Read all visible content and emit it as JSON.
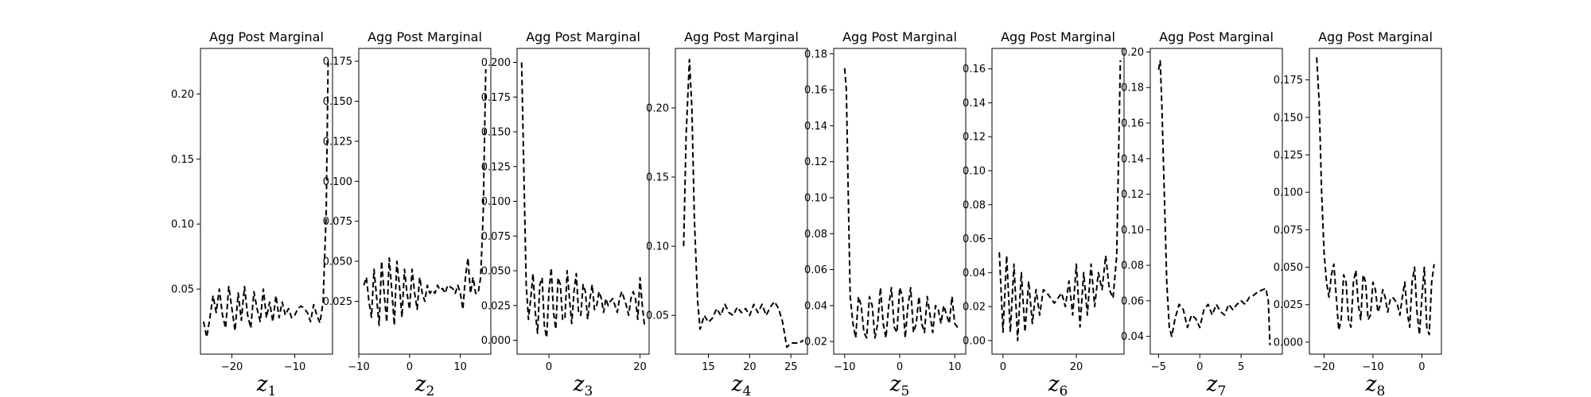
{
  "chart_data": [
    {
      "type": "line",
      "title": "Agg Post Marginal",
      "xlabel": "z",
      "xlabel_sub": "1",
      "xlim": [
        -25,
        -4
      ],
      "ylim": [
        0,
        0.235
      ],
      "xticks": [
        -20,
        -10
      ],
      "yticks": [
        0.05,
        0.1,
        0.15,
        0.2
      ],
      "series": [
        {
          "x": [
            -24.5,
            -24.0,
            -23.5,
            -23.0,
            -22.5,
            -22.0,
            -21.5,
            -21.0,
            -20.5,
            -20.0,
            -19.5,
            -19.0,
            -18.5,
            -18.0,
            -17.5,
            -17.0,
            -16.5,
            -16.0,
            -15.5,
            -15.0,
            -14.5,
            -14.0,
            -13.5,
            -13.0,
            -12.5,
            -12.0,
            -11.5,
            -11.0,
            -10.5,
            -10.0,
            -9.5,
            -9.0,
            -8.5,
            -8.0,
            -7.5,
            -7.0,
            -6.5,
            -6.0,
            -5.5,
            -5.0,
            -4.7
          ],
          "y": [
            0.025,
            0.013,
            0.028,
            0.045,
            0.032,
            0.05,
            0.03,
            0.02,
            0.052,
            0.035,
            0.018,
            0.047,
            0.026,
            0.052,
            0.03,
            0.02,
            0.048,
            0.035,
            0.025,
            0.05,
            0.028,
            0.04,
            0.025,
            0.045,
            0.028,
            0.04,
            0.03,
            0.035,
            0.028,
            0.03,
            0.035,
            0.037,
            0.035,
            0.032,
            0.025,
            0.038,
            0.03,
            0.024,
            0.04,
            0.11,
            0.225
          ]
        }
      ]
    },
    {
      "type": "line",
      "title": "Agg Post Marginal",
      "xlabel": "z",
      "xlabel_sub": "2",
      "xlim": [
        -10,
        16
      ],
      "ylim": [
        -0.008,
        0.183
      ],
      "xticks": [
        -10,
        0,
        10
      ],
      "yticks": [
        0.025,
        0.05,
        0.075,
        0.1,
        0.125,
        0.15,
        0.175
      ],
      "series": [
        {
          "x": [
            -9.0,
            -8.5,
            -8.0,
            -7.5,
            -7.0,
            -6.5,
            -6.0,
            -5.5,
            -5.0,
            -4.5,
            -4.0,
            -3.5,
            -3.0,
            -2.5,
            -2.0,
            -1.5,
            -1.0,
            -0.5,
            0.0,
            0.5,
            1.0,
            1.5,
            2.0,
            2.5,
            3.0,
            3.5,
            4.0,
            4.5,
            5.0,
            5.5,
            6.0,
            6.5,
            7.0,
            7.5,
            8.0,
            8.5,
            9.0,
            9.5,
            10.0,
            10.5,
            11.0,
            11.5,
            12.0,
            12.5,
            13.0,
            13.5,
            14.0,
            14.5,
            15.0
          ],
          "y": [
            0.035,
            0.04,
            0.025,
            0.015,
            0.045,
            0.028,
            0.01,
            0.05,
            0.03,
            0.012,
            0.052,
            0.032,
            0.01,
            0.05,
            0.035,
            0.015,
            0.045,
            0.03,
            0.02,
            0.045,
            0.03,
            0.02,
            0.04,
            0.03,
            0.025,
            0.035,
            0.03,
            0.032,
            0.03,
            0.035,
            0.032,
            0.033,
            0.03,
            0.035,
            0.034,
            0.033,
            0.03,
            0.035,
            0.03,
            0.02,
            0.04,
            0.052,
            0.03,
            0.04,
            0.03,
            0.03,
            0.04,
            0.08,
            0.17
          ]
        }
      ]
    },
    {
      "type": "line",
      "title": "Agg Post Marginal",
      "xlabel": "z",
      "xlabel_sub": "3",
      "xlim": [
        -7,
        22
      ],
      "ylim": [
        -0.01,
        0.21
      ],
      "xticks": [
        0,
        20
      ],
      "yticks": [
        0.0,
        0.025,
        0.05,
        0.075,
        0.1,
        0.125,
        0.15,
        0.175,
        0.2
      ],
      "series": [
        {
          "x": [
            -6,
            -5.5,
            -5,
            -4.5,
            -4,
            -3.5,
            -3,
            -2.5,
            -2,
            -1.5,
            -1,
            -0.5,
            0,
            0.5,
            1,
            1.5,
            2,
            2.5,
            3,
            3.5,
            4,
            4.5,
            5,
            5.5,
            6,
            6.5,
            7,
            7.5,
            8,
            8.5,
            9,
            9.5,
            10,
            10.5,
            11,
            11.5,
            12,
            12.5,
            13,
            13.5,
            14,
            14.5,
            15,
            15.5,
            16,
            16.5,
            17,
            17.5,
            18,
            18.5,
            19,
            19.5,
            20,
            20.5,
            21
          ],
          "y": [
            0.2,
            0.12,
            0.04,
            0.015,
            0.03,
            0.048,
            0.02,
            0.005,
            0.04,
            0.045,
            0.01,
            0.002,
            0.035,
            0.052,
            0.02,
            0.008,
            0.045,
            0.04,
            0.015,
            0.015,
            0.05,
            0.03,
            0.012,
            0.035,
            0.048,
            0.02,
            0.018,
            0.04,
            0.035,
            0.015,
            0.03,
            0.04,
            0.022,
            0.025,
            0.035,
            0.03,
            0.02,
            0.03,
            0.025,
            0.028,
            0.03,
            0.025,
            0.02,
            0.03,
            0.035,
            0.03,
            0.025,
            0.018,
            0.03,
            0.035,
            0.03,
            0.015,
            0.045,
            0.025,
            0.01
          ]
        }
      ]
    },
    {
      "type": "line",
      "title": "Agg Post Marginal",
      "xlabel": "z",
      "xlabel_sub": "4",
      "xlim": [
        11,
        27
      ],
      "ylim": [
        0.022,
        0.243
      ],
      "xticks": [
        15,
        20,
        25
      ],
      "yticks": [
        0.05,
        0.1,
        0.15,
        0.2
      ],
      "series": [
        {
          "x": [
            12.0,
            12.3,
            12.7,
            13.0,
            13.3,
            13.7,
            14.0,
            14.5,
            15.0,
            15.5,
            16.0,
            16.5,
            17.0,
            17.5,
            18.0,
            18.5,
            19.0,
            19.5,
            20.0,
            20.5,
            21.0,
            21.5,
            22.0,
            22.5,
            23.0,
            23.5,
            24.0,
            24.5,
            25.0,
            25.5,
            26.0,
            26.5
          ],
          "y": [
            0.1,
            0.18,
            0.235,
            0.2,
            0.12,
            0.06,
            0.04,
            0.05,
            0.045,
            0.048,
            0.055,
            0.05,
            0.058,
            0.052,
            0.05,
            0.056,
            0.052,
            0.055,
            0.05,
            0.058,
            0.052,
            0.058,
            0.05,
            0.056,
            0.06,
            0.055,
            0.045,
            0.027,
            0.03,
            0.03,
            0.03,
            0.032
          ]
        }
      ]
    },
    {
      "type": "line",
      "title": "Agg Post Marginal",
      "xlabel": "z",
      "xlabel_sub": "5",
      "xlim": [
        -12,
        12
      ],
      "ylim": [
        0.013,
        0.183
      ],
      "xticks": [
        -10,
        0,
        10
      ],
      "yticks": [
        0.02,
        0.04,
        0.06,
        0.08,
        0.1,
        0.12,
        0.14,
        0.16,
        0.18
      ],
      "series": [
        {
          "x": [
            -10.0,
            -9.7,
            -9.4,
            -9.0,
            -8.5,
            -8.0,
            -7.5,
            -7.0,
            -6.5,
            -6.0,
            -5.5,
            -5.0,
            -4.5,
            -4.0,
            -3.5,
            -3.0,
            -2.5,
            -2.0,
            -1.5,
            -1.0,
            -0.5,
            0.0,
            0.5,
            1.0,
            1.5,
            2.0,
            2.5,
            3.0,
            3.5,
            4.0,
            4.5,
            5.0,
            5.5,
            6.0,
            6.5,
            7.0,
            7.5,
            8.0,
            8.5,
            9.0,
            9.5,
            10.0,
            10.5,
            11.0
          ],
          "y": [
            0.172,
            0.16,
            0.11,
            0.045,
            0.03,
            0.022,
            0.045,
            0.04,
            0.025,
            0.022,
            0.045,
            0.04,
            0.022,
            0.03,
            0.05,
            0.03,
            0.022,
            0.04,
            0.05,
            0.028,
            0.025,
            0.05,
            0.045,
            0.022,
            0.04,
            0.05,
            0.025,
            0.03,
            0.045,
            0.03,
            0.025,
            0.045,
            0.035,
            0.025,
            0.04,
            0.038,
            0.03,
            0.04,
            0.035,
            0.03,
            0.045,
            0.03,
            0.028,
            0.028
          ]
        }
      ]
    },
    {
      "type": "line",
      "title": "Agg Post Marginal",
      "xlabel": "z",
      "xlabel_sub": "6",
      "xlim": [
        -3,
        33
      ],
      "ylim": [
        -0.008,
        0.172
      ],
      "xticks": [
        0,
        20
      ],
      "yticks": [
        0.0,
        0.02,
        0.04,
        0.06,
        0.08,
        0.1,
        0.12,
        0.14,
        0.16
      ],
      "series": [
        {
          "x": [
            -1.0,
            0.0,
            1.0,
            2.0,
            3.0,
            4.0,
            5.0,
            6.0,
            7.0,
            8.0,
            9.0,
            10.0,
            11.0,
            12.0,
            13.0,
            14.0,
            15.0,
            16.0,
            17.0,
            18.0,
            19.0,
            20.0,
            21.0,
            22.0,
            23.0,
            24.0,
            25.0,
            26.0,
            27.0,
            28.0,
            29.0,
            30.0,
            31.0,
            32.0
          ],
          "y": [
            0.052,
            0.005,
            0.05,
            0.005,
            0.045,
            0.0,
            0.04,
            0.005,
            0.035,
            0.01,
            0.03,
            0.015,
            0.03,
            0.028,
            0.025,
            0.022,
            0.025,
            0.028,
            0.02,
            0.035,
            0.015,
            0.045,
            0.008,
            0.04,
            0.015,
            0.045,
            0.02,
            0.04,
            0.03,
            0.05,
            0.03,
            0.025,
            0.05,
            0.165
          ]
        }
      ]
    },
    {
      "type": "line",
      "title": "Agg Post Marginal",
      "xlabel": "z",
      "xlabel_sub": "7",
      "xlim": [
        -6,
        10
      ],
      "ylim": [
        0.03,
        0.202
      ],
      "xticks": [
        -5,
        0,
        5
      ],
      "yticks": [
        0.04,
        0.06,
        0.08,
        0.1,
        0.12,
        0.14,
        0.16,
        0.18,
        0.2
      ],
      "series": [
        {
          "x": [
            -5.0,
            -4.8,
            -4.6,
            -4.3,
            -4.0,
            -3.7,
            -3.4,
            -3.0,
            -2.5,
            -2.0,
            -1.5,
            -1.0,
            -0.5,
            0.0,
            0.5,
            1.0,
            1.5,
            2.0,
            2.5,
            3.0,
            3.5,
            4.0,
            4.5,
            5.0,
            5.5,
            6.0,
            6.5,
            7.0,
            7.5,
            8.0,
            8.3,
            8.5
          ],
          "y": [
            0.19,
            0.195,
            0.17,
            0.12,
            0.07,
            0.045,
            0.04,
            0.05,
            0.058,
            0.055,
            0.045,
            0.052,
            0.05,
            0.045,
            0.055,
            0.058,
            0.052,
            0.058,
            0.054,
            0.052,
            0.058,
            0.055,
            0.058,
            0.06,
            0.058,
            0.062,
            0.063,
            0.065,
            0.066,
            0.067,
            0.06,
            0.035
          ]
        }
      ]
    },
    {
      "type": "line",
      "title": "Agg Post Marginal",
      "xlabel": "z",
      "xlabel_sub": "8",
      "xlim": [
        -23,
        4
      ],
      "ylim": [
        -0.008,
        0.196
      ],
      "xticks": [
        -20,
        -10,
        0
      ],
      "yticks": [
        0.0,
        0.025,
        0.05,
        0.075,
        0.1,
        0.125,
        0.15,
        0.175
      ],
      "series": [
        {
          "x": [
            -21.5,
            -21.0,
            -20.5,
            -20.0,
            -19.5,
            -19.0,
            -18.5,
            -18.0,
            -17.5,
            -17.0,
            -16.5,
            -16.0,
            -15.5,
            -15.0,
            -14.5,
            -14.0,
            -13.5,
            -13.0,
            -12.5,
            -12.0,
            -11.5,
            -11.0,
            -10.5,
            -10.0,
            -9.5,
            -9.0,
            -8.5,
            -8.0,
            -7.5,
            -7.0,
            -6.5,
            -6.0,
            -5.5,
            -5.0,
            -4.5,
            -4.0,
            -3.5,
            -3.0,
            -2.5,
            -2.0,
            -1.5,
            -1.0,
            -0.5,
            0.0,
            0.5,
            1.0,
            1.5,
            2.0,
            2.5
          ],
          "y": [
            0.19,
            0.16,
            0.1,
            0.06,
            0.04,
            0.03,
            0.045,
            0.052,
            0.03,
            0.008,
            0.015,
            0.045,
            0.04,
            0.015,
            0.01,
            0.04,
            0.048,
            0.025,
            0.015,
            0.045,
            0.04,
            0.015,
            0.018,
            0.04,
            0.035,
            0.02,
            0.025,
            0.035,
            0.03,
            0.02,
            0.028,
            0.03,
            0.028,
            0.025,
            0.018,
            0.03,
            0.04,
            0.02,
            0.01,
            0.04,
            0.05,
            0.02,
            0.005,
            0.03,
            0.05,
            0.01,
            0.005,
            0.04,
            0.052
          ]
        }
      ]
    }
  ]
}
